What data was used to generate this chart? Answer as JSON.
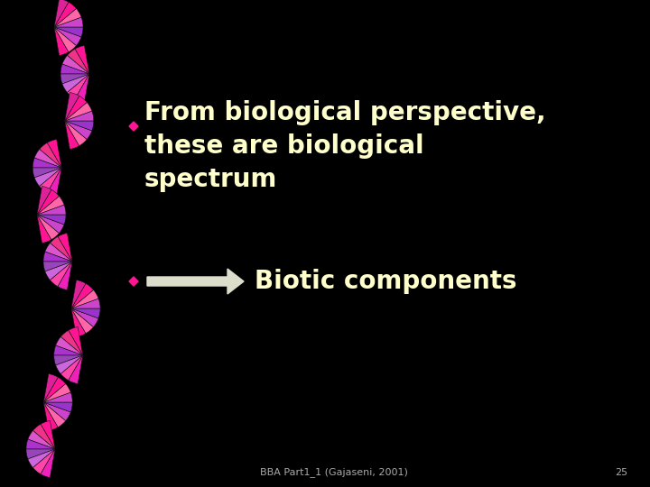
{
  "bg_color": "#000000",
  "text_color": "#ffffcc",
  "bullet_color": "#ff1493",
  "line1": "From biological perspective,",
  "line2": "these are biological",
  "line3": "spectrum",
  "arrow_text": "Biotic components",
  "footer": "BBA Part1_1 (Gajaseni, 2001)",
  "page_num": "25",
  "fan_colors": [
    "#ff1493",
    "#dd33aa",
    "#cc44cc",
    "#9944cc",
    "#8833bb",
    "#aa55cc",
    "#cc66dd",
    "#ee44bb"
  ],
  "text_fontsize": 20,
  "arrow_fontsize": 20,
  "footer_fontsize": 8
}
